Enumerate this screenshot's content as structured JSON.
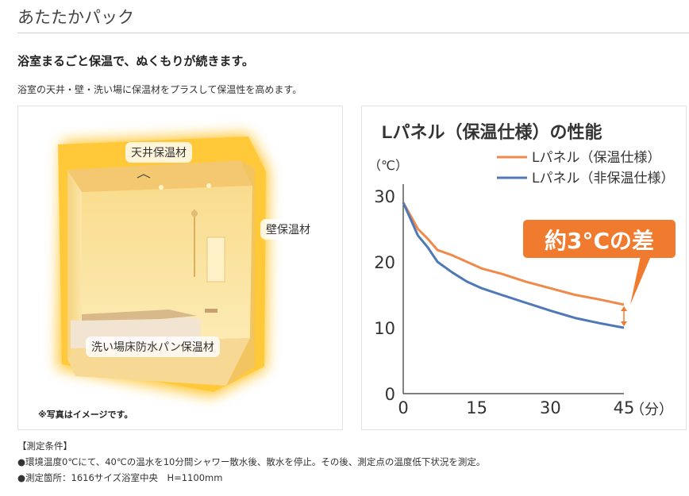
{
  "page": {
    "title": "あたたかパック",
    "headline": "浴室まるごと保温で、ぬくもりが続きます。",
    "lead": "浴室の天井・壁・洗い場に保温材をプラスして保温性を高めます。"
  },
  "photo": {
    "labels": {
      "ceiling": "天井保温材",
      "wall": "壁保温材",
      "floor": "洗い場床防水パン保温材"
    },
    "note": "※写真はイメージです。"
  },
  "chart_data": {
    "type": "line",
    "title": "Lパネル（保温仕様）の性能",
    "ylabel": "（℃）",
    "xlabel": "（分）",
    "xlim": [
      0,
      45
    ],
    "ylim": [
      0,
      30
    ],
    "x_ticks": [
      "0",
      "15",
      "30",
      "45"
    ],
    "y_ticks": [
      "0",
      "10",
      "20",
      "30"
    ],
    "series": [
      {
        "name": "Lパネル（保温仕様）",
        "color": "#f08a4b",
        "x": [
          0,
          1.5,
          3,
          5,
          7,
          10,
          13,
          16,
          20,
          25,
          30,
          35,
          40,
          45
        ],
        "y": [
          29,
          27,
          25,
          23.5,
          21.8,
          21,
          20,
          19,
          18.2,
          17,
          16,
          15,
          14.3,
          13.5
        ]
      },
      {
        "name": "Lパネル（非保温仕様）",
        "color": "#4f78b6",
        "x": [
          0,
          1.5,
          3,
          5,
          7,
          10,
          13,
          16,
          20,
          25,
          30,
          35,
          40,
          45
        ],
        "y": [
          29,
          26.5,
          24,
          22.2,
          20,
          18.4,
          17,
          16,
          15,
          13.8,
          12.6,
          11.5,
          10.7,
          10
        ]
      }
    ],
    "annotation": "約3°Cの差",
    "annotation_color": "#f07a2e"
  },
  "notes": {
    "heading": "【測定条件】",
    "items": [
      "●環境温度0℃にて、40℃の温水を10分間シャワー散水後、散水を停止。その後、測定点の温度低下状況を測定。",
      "●測定箇所：1616サイズ浴室中央　H=1100mm"
    ]
  }
}
